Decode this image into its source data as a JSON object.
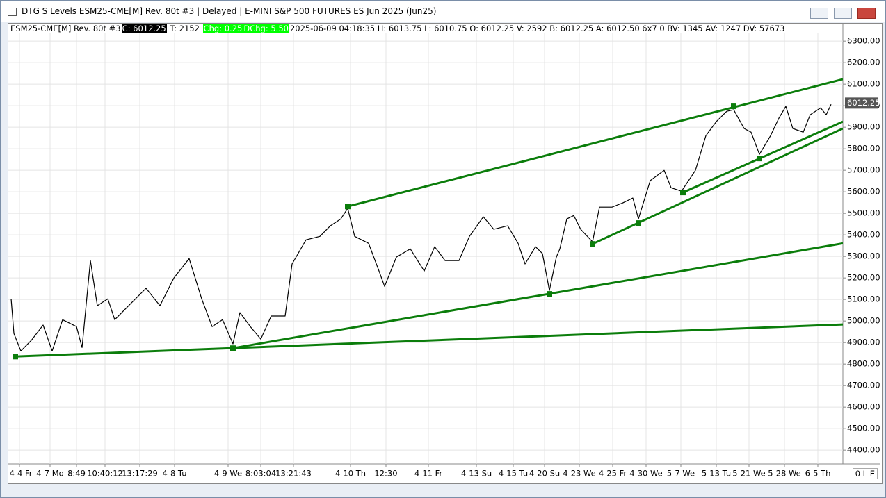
{
  "window": {
    "title": "DTG S Levels ESM25-CME[M]  Rev. 80t #3 | Delayed | E-MINI S&P 500 FUTURES ES Jun 2025 (Jun25)",
    "status": "0 L E"
  },
  "info_bar": {
    "symbol": "ESM25-CME[M]  Rev. 80t #3",
    "close": "C: 6012.25",
    "ticks": "T: 2152",
    "change": "Chg: 0.25",
    "day_change": "DChg: 5.50",
    "details": "2025-06-09 04:18:35 H: 6013.75 L: 6010.75 O: 6012.25 V: 2592 B: 6012.25 A: 6012.50 6x7 0 BV: 1345 AV: 1247 DV: 57673"
  },
  "chart_data": {
    "type": "line",
    "xlim": [
      0,
      1200
    ],
    "ylim": [
      4336,
      6336
    ],
    "xticks": [
      {
        "value": 16,
        "label": "-4-4 Fr"
      },
      {
        "value": 60,
        "label": "4-7 Mo"
      },
      {
        "value": 98,
        "label": "8:49"
      },
      {
        "value": 139,
        "label": "10:40:12"
      },
      {
        "value": 189,
        "label": "13:17:29"
      },
      {
        "value": 239,
        "label": "4-8 Tu"
      },
      {
        "value": 316,
        "label": "4-9 We"
      },
      {
        "value": 363,
        "label": "8:03:04"
      },
      {
        "value": 410,
        "label": "13:21:43"
      },
      {
        "value": 492,
        "label": "4-10 Th"
      },
      {
        "value": 543,
        "label": "12:30"
      },
      {
        "value": 604,
        "label": "4-11 Fr"
      },
      {
        "value": 673,
        "label": "4-13 Su"
      },
      {
        "value": 726,
        "label": "4-15 Tu"
      },
      {
        "value": 771,
        "label": "4-20 Su"
      },
      {
        "value": 821,
        "label": "4-23 We"
      },
      {
        "value": 869,
        "label": "4-25 Fr"
      },
      {
        "value": 917,
        "label": "4-30 We"
      },
      {
        "value": 967,
        "label": "5-7 We"
      },
      {
        "value": 1018,
        "label": "5-13 Tu"
      },
      {
        "value": 1065,
        "label": "5-21 We"
      },
      {
        "value": 1116,
        "label": "5-28 We"
      },
      {
        "value": 1164,
        "label": "6-5 Th"
      }
    ],
    "yticks": [
      {
        "value": 4400,
        "label": "4400.00"
      },
      {
        "value": 4500,
        "label": "4500.00"
      },
      {
        "value": 4600,
        "label": "4600.00"
      },
      {
        "value": 4700,
        "label": "4700.00"
      },
      {
        "value": 4800,
        "label": "4800.00"
      },
      {
        "value": 4900,
        "label": "4900.00"
      },
      {
        "value": 5000,
        "label": "5000.00"
      },
      {
        "value": 5100,
        "label": "5100.00"
      },
      {
        "value": 5200,
        "label": "5200.00"
      },
      {
        "value": 5300,
        "label": "5300.00"
      },
      {
        "value": 5400,
        "label": "5400.00"
      },
      {
        "value": 5500,
        "label": "5500.00"
      },
      {
        "value": 5600,
        "label": "5600.00"
      },
      {
        "value": 5700,
        "label": "5700.00"
      },
      {
        "value": 5800,
        "label": "5800.00"
      },
      {
        "value": 5900,
        "label": "5900.00"
      },
      {
        "value": 6000,
        "label": "6000.00"
      },
      {
        "value": 6100,
        "label": "6100.00"
      },
      {
        "value": 6200,
        "label": "6200.00"
      },
      {
        "value": 6300,
        "label": "6300.00"
      }
    ],
    "grid": true,
    "last_price": 6012.25,
    "series": [
      {
        "color": "#000000",
        "x": [
          4,
          8,
          18,
          33,
          50,
          63,
          78,
          98,
          106,
          118,
          128,
          143,
          153,
          173,
          198,
          218,
          238,
          260,
          278,
          293,
          308,
          323,
          333,
          348,
          363,
          378,
          398,
          408,
          428,
          448,
          463,
          478,
          488,
          498,
          518,
          533,
          541,
          558,
          578,
          598,
          613,
          628,
          648,
          663,
          683,
          698,
          718,
          733,
          743,
          758,
          768,
          778,
          788,
          793,
          803,
          813,
          823,
          840,
          850,
          868,
          883,
          898,
          906,
          923,
          943,
          953,
          968,
          988,
          1003,
          1018,
          1033,
          1043,
          1058,
          1068,
          1080,
          1096,
          1108,
          1118,
          1128,
          1143,
          1153,
          1168,
          1176,
          1183
        ],
        "values": [
          5103,
          4942,
          4861,
          4910,
          4981,
          4861,
          5006,
          4974,
          4877,
          5281,
          5071,
          5103,
          5006,
          5071,
          5152,
          5071,
          5200,
          5290,
          5103,
          4974,
          5006,
          4894,
          5039,
          4974,
          4916,
          5023,
          5023,
          5265,
          5377,
          5393,
          5442,
          5474,
          5523,
          5393,
          5361,
          5232,
          5161,
          5297,
          5335,
          5232,
          5345,
          5281,
          5281,
          5393,
          5484,
          5426,
          5442,
          5361,
          5265,
          5345,
          5313,
          5142,
          5297,
          5335,
          5474,
          5490,
          5426,
          5368,
          5529,
          5529,
          5548,
          5571,
          5474,
          5652,
          5700,
          5619,
          5603,
          5700,
          5861,
          5926,
          5974,
          5981,
          5894,
          5877,
          5774,
          5861,
          5942,
          5997,
          5894,
          5877,
          5958,
          5990,
          5958,
          6006
        ]
      },
      {
        "color": "#0b7d0b",
        "x": [
          10,
          1200
        ],
        "values": [
          4835,
          4984
        ]
      },
      {
        "color": "#0b7d0b",
        "x": [
          323,
          1200
        ],
        "values": [
          4874,
          5361
        ]
      },
      {
        "color": "#0b7d0b",
        "x": [
          488,
          1200
        ],
        "values": [
          5532,
          6123
        ]
      },
      {
        "color": "#0b7d0b",
        "x": [
          840,
          1200
        ],
        "values": [
          5358,
          5894
        ]
      },
      {
        "color": "#0b7d0b",
        "x": [
          970,
          1200
        ],
        "values": [
          5597,
          5926
        ]
      }
    ],
    "markers": {
      "color": "#0b7d0b",
      "x": [
        10,
        323,
        488,
        778,
        840,
        906,
        970,
        1043,
        1080
      ],
      "values": [
        4835,
        4874,
        5532,
        5126,
        5358,
        5455,
        5597,
        5997,
        5755
      ]
    }
  }
}
